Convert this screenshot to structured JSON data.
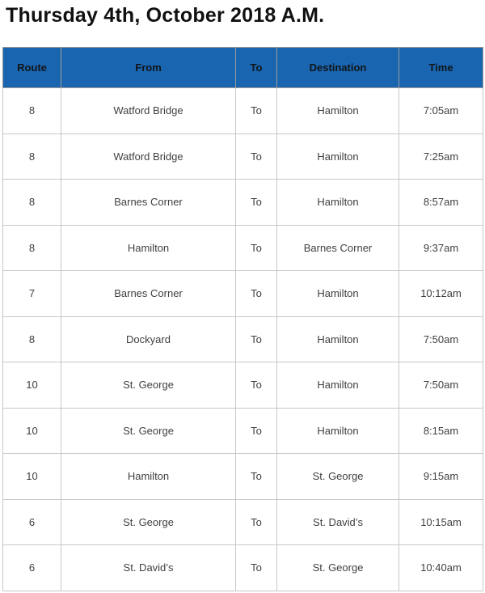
{
  "page": {
    "title": "Thursday 4th, October 2018 A.M."
  },
  "colors": {
    "header_background": "#1a65b0",
    "header_text": "#10151a",
    "body_text": "#404040",
    "border": "#c8c8c8"
  },
  "table": {
    "columns": [
      {
        "key": "route",
        "label": "Route"
      },
      {
        "key": "from",
        "label": "From"
      },
      {
        "key": "to",
        "label": "To"
      },
      {
        "key": "destination",
        "label": "Destination"
      },
      {
        "key": "time",
        "label": "Time"
      }
    ],
    "rows": [
      {
        "route": "8",
        "from": "Watford Bridge",
        "to": "To",
        "destination": "Hamilton",
        "time": "7:05am"
      },
      {
        "route": "8",
        "from": "Watford Bridge",
        "to": "To",
        "destination": "Hamilton",
        "time": "7:25am"
      },
      {
        "route": "8",
        "from": "Barnes Corner",
        "to": "To",
        "destination": "Hamilton",
        "time": "8:57am"
      },
      {
        "route": "8",
        "from": "Hamilton",
        "to": "To",
        "destination": "Barnes Corner",
        "time": "9:37am"
      },
      {
        "route": "7",
        "from": "Barnes Corner",
        "to": "To",
        "destination": "Hamilton",
        "time": "10:12am"
      },
      {
        "route": "8",
        "from": "Dockyard",
        "to": "To",
        "destination": "Hamilton",
        "time": "7:50am"
      },
      {
        "route": "10",
        "from": "St. George",
        "to": "To",
        "destination": "Hamilton",
        "time": "7:50am"
      },
      {
        "route": "10",
        "from": "St. George",
        "to": "To",
        "destination": "Hamilton",
        "time": "8:15am"
      },
      {
        "route": "10",
        "from": "Hamilton",
        "to": "To",
        "destination": "St. George",
        "time": "9:15am"
      },
      {
        "route": "6",
        "from": "St. George",
        "to": "To",
        "destination": "St. David’s",
        "time": "10:15am"
      },
      {
        "route": "6",
        "from": "St. David’s",
        "to": "To",
        "destination": "St. George",
        "time": "10:40am"
      }
    ]
  }
}
